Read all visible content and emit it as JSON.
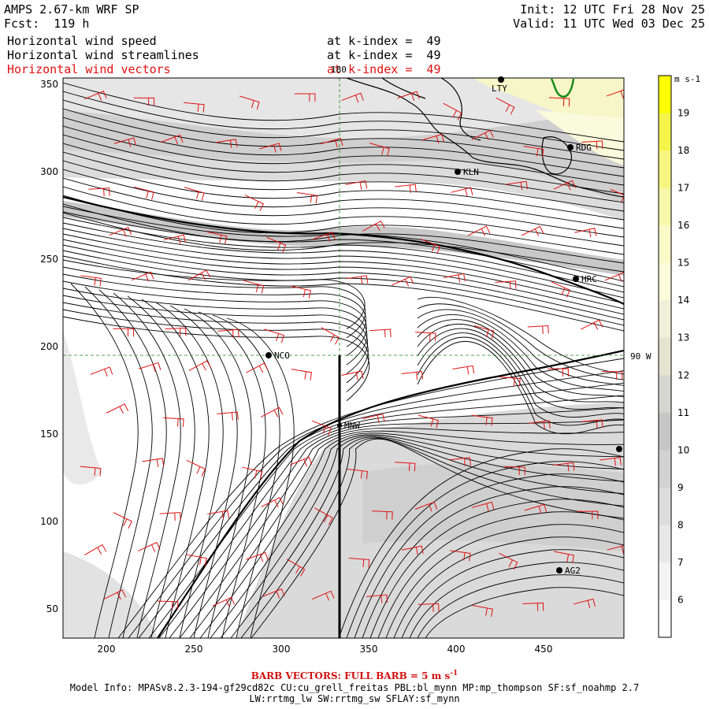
{
  "header": {
    "model": "AMPS 2.67-km WRF SP",
    "forecast": "Fcst:  119 h",
    "init": "Init: 12 UTC Fri 28 Nov 25",
    "valid": "Valid: 11 UTC Wed 03 Dec 25",
    "fields": [
      {
        "name": "Horizontal wind speed",
        "level": "at k-index =  49"
      },
      {
        "name": "Horizontal wind streamlines",
        "level": "at k-index =  49"
      },
      {
        "name": "Horizontal wind vectors",
        "level": "at k-index =  49"
      }
    ]
  },
  "axes": {
    "x_ticks": [
      "200",
      "250",
      "300",
      "350",
      "400",
      "450"
    ],
    "y_ticks": [
      "350",
      "300",
      "250",
      "200",
      "150",
      "100",
      "50"
    ],
    "lon_label_top": "180",
    "lat_label_right": "90 W"
  },
  "stations": [
    {
      "label": "LTY"
    },
    {
      "label": "RDG"
    },
    {
      "label": "KLN"
    },
    {
      "label": "HRC"
    },
    {
      "label": "NCO"
    },
    {
      "label": "MNW"
    },
    {
      "label": "AG2"
    }
  ],
  "colorbar": {
    "units": "m s-1",
    "levels": [
      "19",
      "18",
      "17",
      "16",
      "15",
      "14",
      "13",
      "12",
      "11",
      "10",
      "9",
      "8",
      "7",
      "6"
    ],
    "colors": [
      "#ffff00",
      "#f4f44a",
      "#f6f680",
      "#f8f8aa",
      "#fafac8",
      "#fcfcdc",
      "#f0f0da",
      "#e4e4d0",
      "#d6d6d0",
      "#c6c6c6",
      "#d2d2d2",
      "#dddddd",
      "#e8e8e8",
      "#f3f3f3",
      "#ffffff"
    ]
  },
  "footer": {
    "barb": "BARB VECTORS:  FULL BARB = 5 m s",
    "model_info": "Model Info: MPASv8.2.3-194-gf29cd82c CU:cu_grell_freitas PBL:bl_mynn MP:mp_thompson SF:sf_noahmp 2.7",
    "physics": "LW:rrtmg_lw SW:rrtmg_sw SFLAY:sf_mynn"
  }
}
